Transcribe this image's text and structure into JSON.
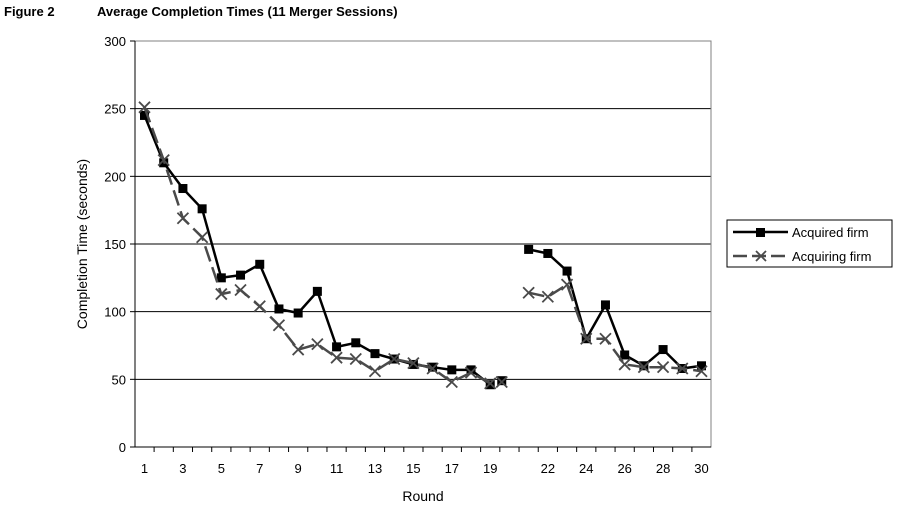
{
  "figure": {
    "label": "Figure 2",
    "title": "Average Completion Times (11 Merger Sessions)"
  },
  "chart_data": {
    "type": "line",
    "title": "Average Completion Times (11 Merger Sessions)",
    "xlabel": "Round",
    "ylabel": "Completion Time (seconds)",
    "xlim": [
      1,
      30
    ],
    "ylim": [
      0,
      300
    ],
    "y_ticks": [
      0,
      50,
      100,
      150,
      200,
      250,
      300
    ],
    "x_tick_labels": [
      1,
      3,
      5,
      7,
      9,
      11,
      13,
      15,
      17,
      19,
      22,
      24,
      26,
      28,
      30
    ],
    "grid": "horizontal",
    "legend_position": "right",
    "series": [
      {
        "name": "Acquired firm",
        "style": "solid",
        "marker": "square",
        "color": "#000000",
        "segments": [
          {
            "x": [
              1,
              2,
              3,
              4,
              5,
              6,
              7,
              8,
              9,
              10,
              11,
              12,
              13,
              14,
              15,
              16,
              17,
              18,
              19
            ],
            "y": [
              245,
              210,
              191,
              176,
              125,
              127,
              135,
              102,
              99,
              115,
              74,
              77,
              69,
              65,
              61,
              59,
              57,
              57,
              46
            ]
          },
          {
            "x": [
              19.6
            ],
            "y": [
              49
            ]
          },
          {
            "x": [
              21,
              22,
              23,
              24,
              25,
              26,
              27,
              28,
              29,
              30
            ],
            "y": [
              146,
              143,
              130,
              80,
              105,
              68,
              60,
              72,
              58,
              60
            ]
          }
        ]
      },
      {
        "name": "Acquiring firm",
        "style": "dashed",
        "marker": "x",
        "color": "#4a4a4a",
        "segments": [
          {
            "x": [
              1,
              2,
              3,
              4,
              5,
              6,
              7,
              8,
              9,
              10,
              11,
              12,
              13,
              14,
              15,
              16,
              17,
              18,
              19
            ],
            "y": [
              251,
              212,
              169,
              155,
              113,
              116,
              104,
              90,
              72,
              76,
              66,
              65,
              56,
              65,
              62,
              58,
              48,
              55,
              47
            ]
          },
          {
            "x": [
              19.6
            ],
            "y": [
              48
            ]
          },
          {
            "x": [
              21,
              22,
              23,
              24,
              25,
              26,
              27,
              28,
              29,
              30
            ],
            "y": [
              114,
              111,
              120,
              80,
              80,
              61,
              59,
              59,
              58,
              56
            ]
          }
        ]
      }
    ]
  }
}
